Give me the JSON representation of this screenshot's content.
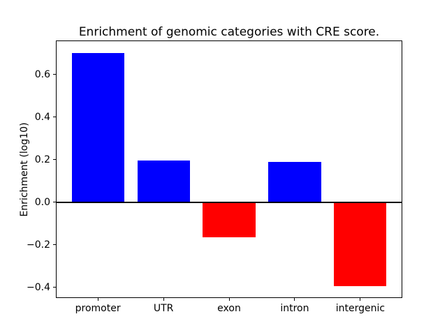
{
  "chart_data": {
    "type": "bar",
    "title": "Enrichment of genomic categories with CRE score.",
    "xlabel": "",
    "ylabel": "Enrichment (log10)",
    "categories": [
      "promoter",
      "UTR",
      "exon",
      "intron",
      "intergenic"
    ],
    "values": [
      0.7,
      0.195,
      -0.165,
      0.19,
      -0.395
    ],
    "yticks": [
      0.6,
      0.4,
      0.2,
      0.0,
      -0.2,
      -0.4
    ],
    "ylim": [
      -0.45,
      0.76
    ],
    "xlim": [
      -0.64,
      4.64
    ],
    "bar_width": 0.8,
    "grid": false,
    "legend_position": "none",
    "zero_line": true,
    "colors": {
      "positive": "#0000ff",
      "negative": "#ff0000",
      "axis": "#000000",
      "background": "#ffffff"
    }
  }
}
